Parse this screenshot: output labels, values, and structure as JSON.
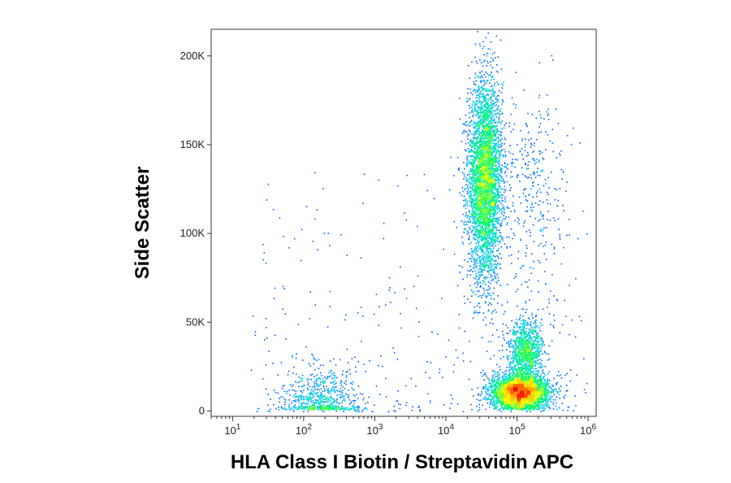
{
  "chart_data": {
    "type": "scatter",
    "title": "",
    "xlabel": "HLA Class I Biotin / Streptavidin APC",
    "ylabel": "Side Scatter",
    "x_scale": "log",
    "x_range": [
      5,
      1300000
    ],
    "y_range": [
      -3000,
      215000
    ],
    "grid": false,
    "legend": "none",
    "x_ticks": [
      {
        "base": "10",
        "exp": "1",
        "value": 10
      },
      {
        "base": "10",
        "exp": "2",
        "value": 100
      },
      {
        "base": "10",
        "exp": "3",
        "value": 1000
      },
      {
        "base": "10",
        "exp": "4",
        "value": 10000
      },
      {
        "base": "10",
        "exp": "5",
        "value": 100000
      },
      {
        "base": "10",
        "exp": "6",
        "value": 1000000
      }
    ],
    "y_ticks": [
      {
        "label": "0",
        "value": 0
      },
      {
        "label": "50K",
        "value": 50000
      },
      {
        "label": "100K",
        "value": 100000
      },
      {
        "label": "150K",
        "value": 150000
      },
      {
        "label": "200K",
        "value": 200000
      }
    ],
    "colormap": [
      "#0000ff",
      "#00c8ff",
      "#00ff66",
      "#ffff00",
      "#ff8800",
      "#ff0000"
    ],
    "populations": [
      {
        "x_center": 35000,
        "y_center": 130000,
        "x_spread_decades": 0.12,
        "y_sd": 28000,
        "events": 4200
      },
      {
        "x_center": 110000,
        "y_center": 11000,
        "x_spread_decades": 0.2,
        "y_sd": 5000,
        "events": 3500
      },
      {
        "x_center": 130000,
        "y_center": 33000,
        "x_spread_decades": 0.12,
        "y_sd": 9000,
        "events": 1100
      },
      {
        "x_center": 170,
        "y_center": 6000,
        "x_spread_decades": 0.28,
        "y_sd": 9000,
        "events": 700
      },
      {
        "x_center": 170000,
        "y_center": 120000,
        "x_spread_decades": 0.22,
        "y_sd": 30000,
        "events": 320
      }
    ]
  }
}
